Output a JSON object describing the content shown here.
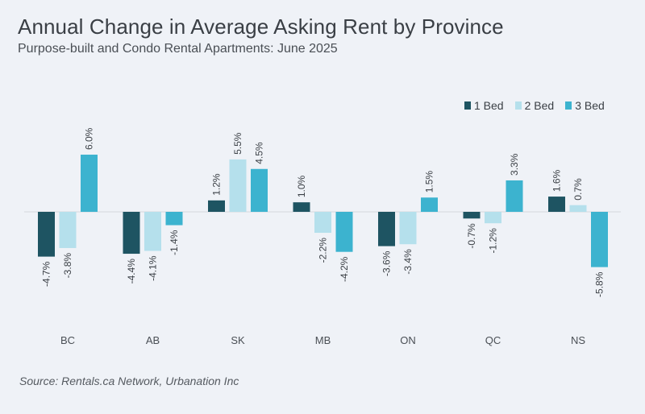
{
  "chart_data": {
    "type": "bar",
    "title": "Annual Change in Average Asking Rent by Province",
    "subtitle": "Purpose-built and Condo Rental Apartments: June 2025",
    "source": "Source: Rentals.ca Network, Urbanation Inc",
    "categories": [
      "BC",
      "AB",
      "SK",
      "MB",
      "ON",
      "QC",
      "NS"
    ],
    "series": [
      {
        "name": "1 Bed",
        "color": "#1e5462",
        "values": [
          -4.7,
          -4.4,
          1.2,
          1.0,
          -3.6,
          -0.7,
          1.6
        ],
        "labels": [
          "-4.7%",
          "-4.4%",
          "1.2%",
          "1.0%",
          "-3.6%",
          "-0.7%",
          "1.6%"
        ]
      },
      {
        "name": "2 Bed",
        "color": "#b5e0ec",
        "values": [
          -3.8,
          -4.1,
          5.5,
          -2.2,
          -3.4,
          -1.2,
          0.7
        ],
        "labels": [
          "-3.8%",
          "-4.1%",
          "5.5%",
          "-2.2%",
          "-3.4%",
          "-1.2%",
          "0.7%"
        ]
      },
      {
        "name": "3 Bed",
        "color": "#3cb3cf",
        "values": [
          6.0,
          -1.4,
          4.5,
          -4.2,
          1.5,
          3.3,
          -5.8
        ],
        "labels": [
          "6.0%",
          "-1.4%",
          "4.5%",
          "-4.2%",
          "1.5%",
          "3.3%",
          "-5.8%"
        ]
      }
    ],
    "ylim": [
      -6,
      6
    ],
    "legend": "top-right",
    "grid": false
  }
}
